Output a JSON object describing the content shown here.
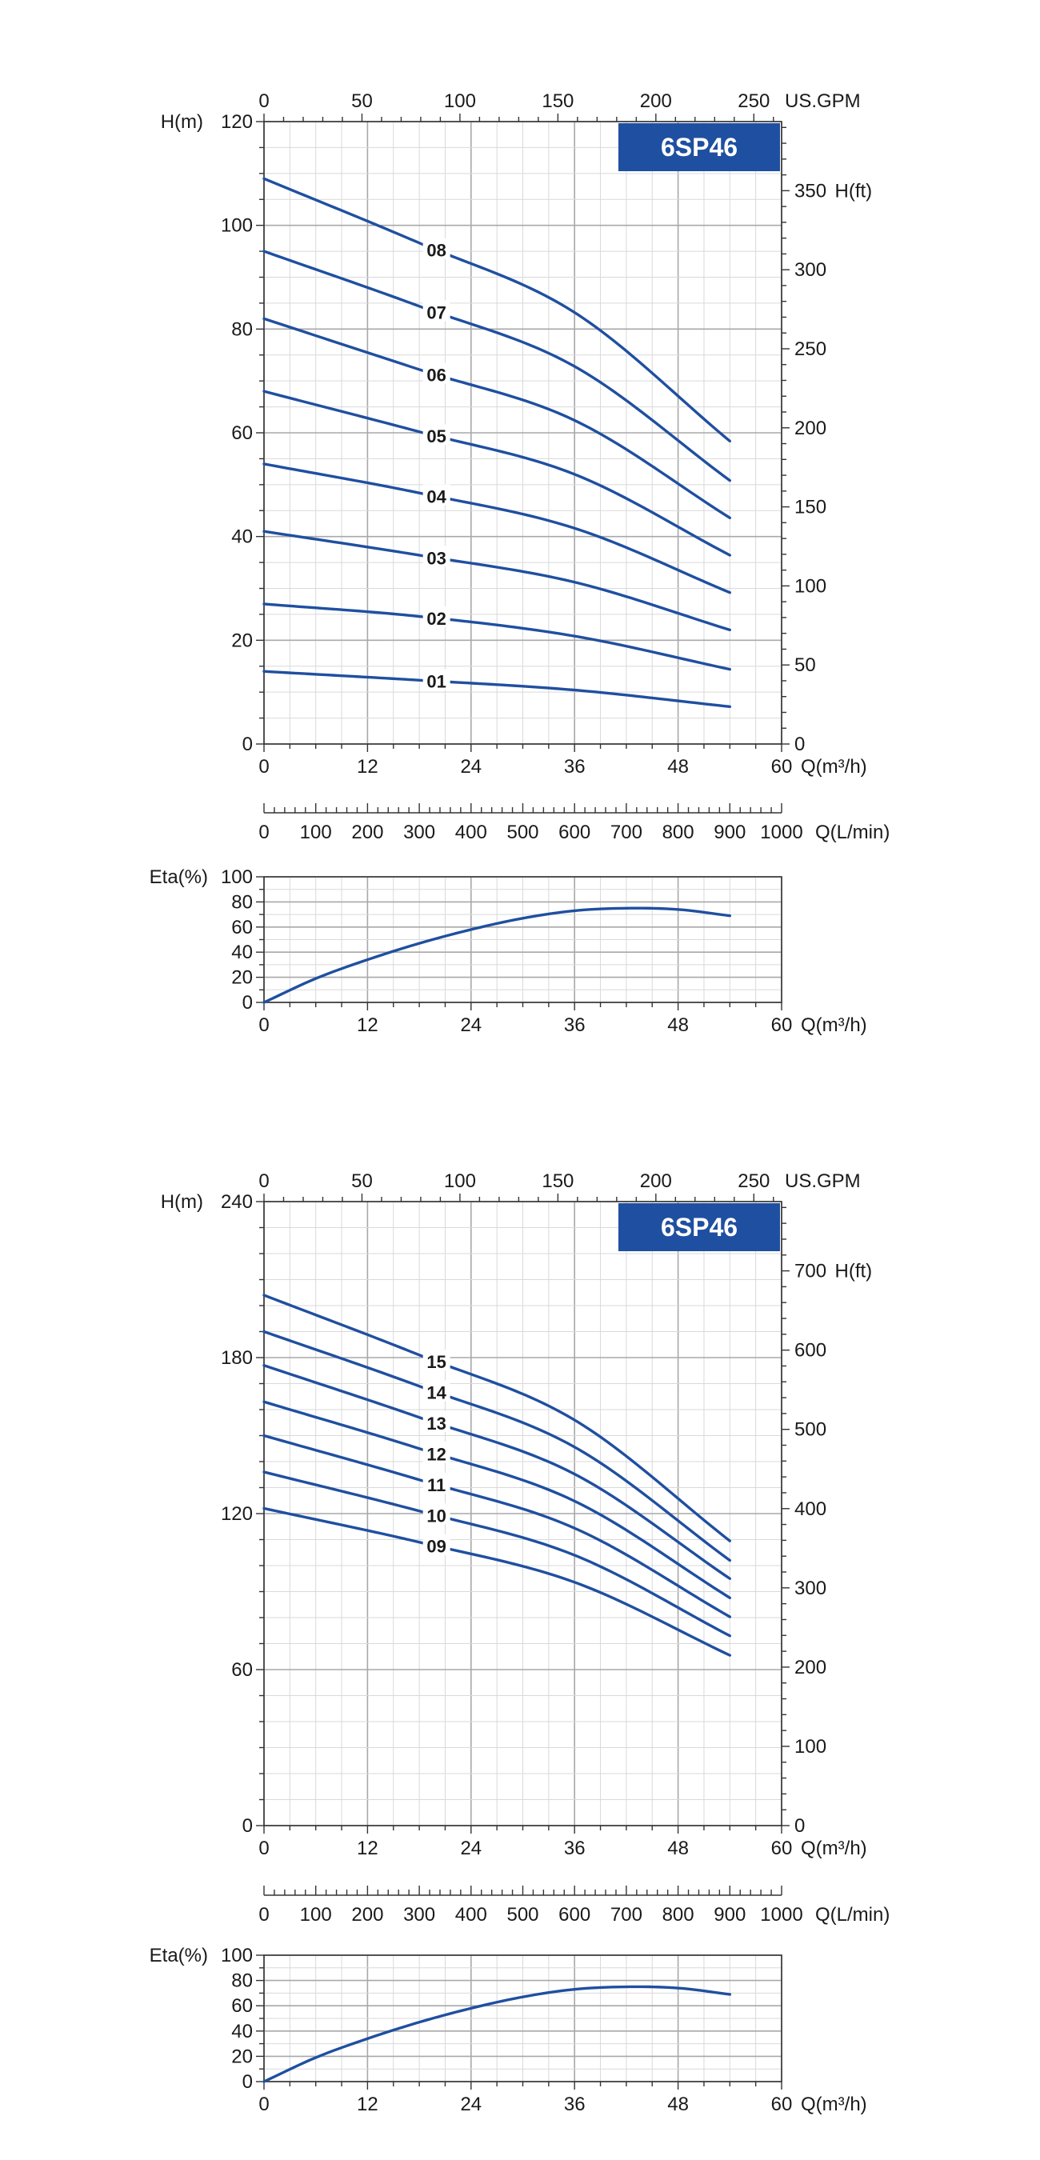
{
  "chart_data": [
    {
      "type": "line",
      "badge": "6SP46",
      "xlabel": "Q(m³/h)",
      "xlim": [
        0,
        60
      ],
      "x_ticks": [
        0,
        12,
        24,
        36,
        48,
        60
      ],
      "ylabel": "H(m)",
      "ylim": [
        0,
        120
      ],
      "y_ticks": [
        0,
        20,
        40,
        60,
        80,
        100,
        120
      ],
      "top_axis": {
        "label": "US.GPM",
        "ticks": [
          0,
          50,
          100,
          150,
          200,
          250
        ]
      },
      "right_axis": {
        "label": "H(ft)",
        "ticks": [
          0,
          50,
          100,
          150,
          200,
          250,
          300,
          350
        ]
      },
      "secondary_x_axis": {
        "label": "Q(L/min)",
        "ticks": [
          0,
          100,
          200,
          300,
          400,
          500,
          600,
          700,
          800,
          900,
          1000
        ]
      },
      "grid": true,
      "series": [
        {
          "name": "01",
          "x": [
            0,
            18,
            36,
            54
          ],
          "values": [
            14,
            12.3,
            10.4,
            7.2
          ]
        },
        {
          "name": "02",
          "x": [
            0,
            18,
            36,
            54
          ],
          "values": [
            27,
            24.6,
            20.8,
            14.4
          ]
        },
        {
          "name": "03",
          "x": [
            0,
            18,
            36,
            54
          ],
          "values": [
            41,
            36.4,
            31.2,
            22
          ]
        },
        {
          "name": "04",
          "x": [
            0,
            18,
            36,
            54
          ],
          "values": [
            54,
            48.4,
            41.6,
            29.2
          ]
        },
        {
          "name": "05",
          "x": [
            0,
            18,
            36,
            54
          ],
          "values": [
            68,
            60.2,
            52,
            36.4
          ]
        },
        {
          "name": "06",
          "x": [
            0,
            18,
            36,
            54
          ],
          "values": [
            82,
            72.2,
            62.4,
            43.6
          ]
        },
        {
          "name": "07",
          "x": [
            0,
            18,
            36,
            54
          ],
          "values": [
            95,
            84.4,
            72.8,
            50.8
          ]
        },
        {
          "name": "08",
          "x": [
            0,
            18,
            36,
            54
          ],
          "values": [
            109,
            96.6,
            83.2,
            58.4
          ]
        }
      ]
    },
    {
      "type": "line",
      "xlabel": "Q(m³/h)",
      "xlim": [
        0,
        60
      ],
      "x_ticks": [
        0,
        12,
        24,
        36,
        48,
        60
      ],
      "ylabel": "Eta(%)",
      "ylim": [
        0,
        100
      ],
      "y_ticks": [
        0,
        20,
        40,
        60,
        80,
        100
      ],
      "grid": true,
      "series": [
        {
          "x": [
            0,
            6,
            12,
            18,
            24,
            30,
            36,
            42,
            48,
            54
          ],
          "values": [
            0,
            19,
            34,
            47,
            58,
            67,
            73,
            75,
            74,
            69
          ]
        }
      ]
    },
    {
      "type": "line",
      "badge": "6SP46",
      "xlabel": "Q(m³/h)",
      "xlim": [
        0,
        60
      ],
      "x_ticks": [
        0,
        12,
        24,
        36,
        48,
        60
      ],
      "ylabel": "H(m)",
      "ylim": [
        0,
        240
      ],
      "y_ticks": [
        0,
        60,
        120,
        180,
        240
      ],
      "top_axis": {
        "label": "US.GPM",
        "ticks": [
          0,
          50,
          100,
          150,
          200,
          250
        ]
      },
      "right_axis": {
        "label": "H(ft)",
        "ticks": [
          0,
          100,
          200,
          300,
          400,
          500,
          600,
          700
        ]
      },
      "secondary_x_axis": {
        "label": "Q(L/min)",
        "ticks": [
          0,
          100,
          200,
          300,
          400,
          500,
          600,
          700,
          800,
          900,
          1000
        ]
      },
      "grid": true,
      "series": [
        {
          "name": "09",
          "x": [
            0,
            18,
            36,
            54
          ],
          "values": [
            122,
            109,
            93.6,
            65.5
          ]
        },
        {
          "name": "10",
          "x": [
            0,
            18,
            36,
            54
          ],
          "values": [
            136,
            121,
            104,
            73
          ]
        },
        {
          "name": "11",
          "x": [
            0,
            18,
            36,
            54
          ],
          "values": [
            150,
            133,
            114.4,
            80.3
          ]
        },
        {
          "name": "12",
          "x": [
            0,
            18,
            36,
            54
          ],
          "values": [
            163,
            145,
            124.8,
            87.6
          ]
        },
        {
          "name": "13",
          "x": [
            0,
            18,
            36,
            54
          ],
          "values": [
            177,
            157,
            135.2,
            95
          ]
        },
        {
          "name": "14",
          "x": [
            0,
            18,
            36,
            54
          ],
          "values": [
            190,
            169,
            145.6,
            102
          ]
        },
        {
          "name": "15",
          "x": [
            0,
            18,
            36,
            54
          ],
          "values": [
            204,
            181,
            156,
            109.5
          ]
        }
      ]
    },
    {
      "type": "line",
      "xlabel": "Q(m³/h)",
      "xlim": [
        0,
        60
      ],
      "x_ticks": [
        0,
        12,
        24,
        36,
        48,
        60
      ],
      "ylabel": "Eta(%)",
      "ylim": [
        0,
        100
      ],
      "y_ticks": [
        0,
        20,
        40,
        60,
        80,
        100
      ],
      "grid": true,
      "series": [
        {
          "x": [
            0,
            6,
            12,
            18,
            24,
            30,
            36,
            42,
            48,
            54
          ],
          "values": [
            0,
            19,
            34,
            47,
            58,
            67,
            73,
            75,
            74,
            69
          ]
        }
      ]
    }
  ],
  "colors": {
    "curve": "#1f4fa0",
    "badge": "#1f4fa0",
    "grid_major": "#a8a8a8",
    "grid_minor": "#d9d9d9",
    "axis": "#333333"
  }
}
